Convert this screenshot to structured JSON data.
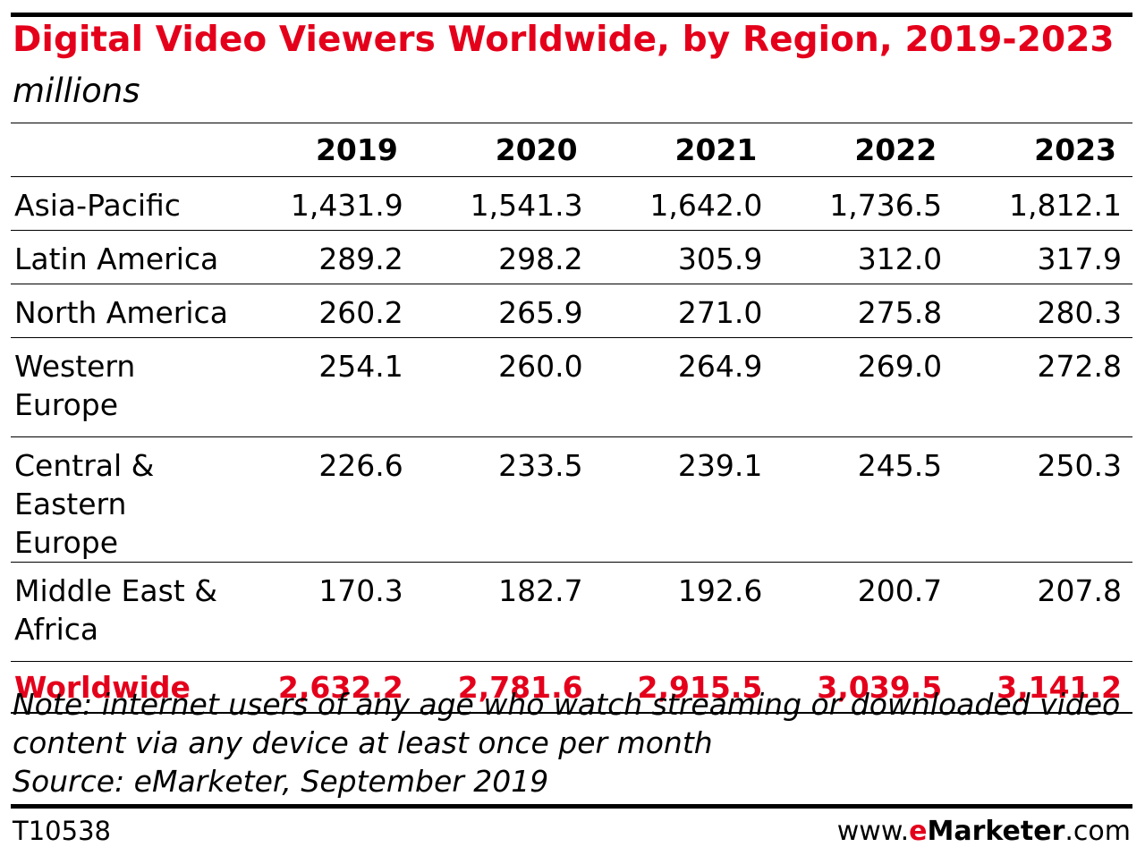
{
  "title": "Digital Video Viewers Worldwide, by Region, 2019-2023",
  "subtitle": "millions",
  "chart_data": {
    "type": "table",
    "title": "Digital Video Viewers Worldwide, by Region, 2019-2023",
    "subtitle": "millions",
    "columns": [
      "2019",
      "2020",
      "2021",
      "2022",
      "2023"
    ],
    "rows": [
      {
        "label": "Asia-Pacific",
        "values": [
          "1,431.9",
          "1,541.3",
          "1,642.0",
          "1,736.5",
          "1,812.1"
        ]
      },
      {
        "label": "Latin America",
        "values": [
          "289.2",
          "298.2",
          "305.9",
          "312.0",
          "317.9"
        ]
      },
      {
        "label": "North America",
        "values": [
          "260.2",
          "265.9",
          "271.0",
          "275.8",
          "280.3"
        ]
      },
      {
        "label": "Western Europe",
        "values": [
          "254.1",
          "260.0",
          "264.9",
          "269.0",
          "272.8"
        ]
      },
      {
        "label": "Central & Eastern Europe",
        "values": [
          "226.6",
          "233.5",
          "239.1",
          "245.5",
          "250.3"
        ]
      },
      {
        "label": "Middle East & Africa",
        "values": [
          "170.3",
          "182.7",
          "192.6",
          "200.7",
          "207.8"
        ]
      }
    ],
    "total": {
      "label": "Worldwide",
      "values": [
        "2,632.2",
        "2,781.6",
        "2,915.5",
        "3,039.5",
        "3,141.2"
      ]
    }
  },
  "note": "Note: internet users of any age who watch streaming or downloaded video content via any device at least once per month",
  "source": "Source: eMarketer, September 2019",
  "footer": {
    "id": "T10538",
    "brand_prefix": "www.",
    "brand_e": "e",
    "brand_name": "Marketer",
    "brand_suffix": ".com"
  },
  "colors": {
    "accent": "#e4001b",
    "text": "#000000",
    "background": "#ffffff"
  }
}
